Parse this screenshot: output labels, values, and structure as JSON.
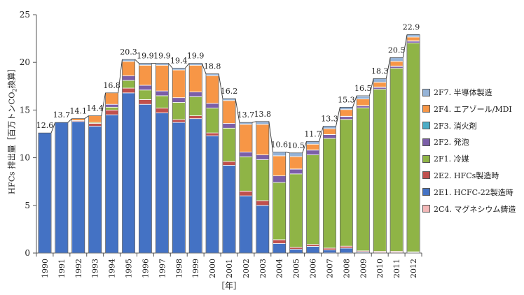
{
  "chart_data": {
    "type": "bar",
    "stacked": true,
    "ylabel": "HFCs 排出量［百万トンCO₂換算］",
    "ylabel_parts": [
      "HFCs 排出量［百万トンCO",
      "2",
      "換算］"
    ],
    "xlabel": "［年］",
    "ylim": [
      0,
      25
    ],
    "yticks": [
      0,
      5,
      10,
      15,
      20,
      25
    ],
    "legend_position": "right",
    "categories": [
      "1990",
      "1991",
      "1992",
      "1993",
      "1994",
      "1995",
      "1996",
      "1997",
      "1998",
      "1999",
      "2000",
      "2001",
      "2002",
      "2003",
      "2004",
      "2005",
      "2006",
      "2007",
      "2008",
      "2009",
      "2010",
      "2011",
      "2012"
    ],
    "totals": [
      12.6,
      13.7,
      14.1,
      14.4,
      16.8,
      20.3,
      19.9,
      19.9,
      19.4,
      19.9,
      18.8,
      16.2,
      13.7,
      13.8,
      10.6,
      10.5,
      11.7,
      13.3,
      15.3,
      16.5,
      18.3,
      20.5,
      22.9
    ],
    "total_labels": [
      "12.6",
      "13.7",
      "14.1",
      "14.4",
      "16.8",
      "20.3",
      "19.9",
      "19.9",
      "19.4",
      "19.9",
      "18.8",
      "16.2",
      "13.7",
      "13.8",
      "10.6",
      "10.5",
      "11.7",
      "13.3",
      "15.3",
      "16.5",
      "18.3",
      "20.5",
      "22.9"
    ],
    "series": [
      {
        "name": "2C4. マグネシウム鋳造",
        "color": "#f4b8b8",
        "values": [
          0,
          0,
          0,
          0,
          0,
          0,
          0,
          0,
          0,
          0,
          0,
          0,
          0,
          0,
          0,
          0,
          0,
          0.02,
          0.02,
          0.03,
          0.03,
          0.03,
          0.03
        ]
      },
      {
        "name": "2E1. HCFC-22製造時",
        "color": "#4472c4",
        "values": [
          12.6,
          13.7,
          13.8,
          13.3,
          14.5,
          16.8,
          15.6,
          14.7,
          13.7,
          14.1,
          12.3,
          9.2,
          6.0,
          5.0,
          1.0,
          0.4,
          0.7,
          0.3,
          0.5,
          0.1,
          0.05,
          0.05,
          0.05
        ]
      },
      {
        "name": "2E2. HFCs製造時",
        "color": "#c0504d",
        "values": [
          0,
          0,
          0.1,
          0.3,
          0.5,
          0.5,
          0.5,
          0.5,
          0.3,
          0.3,
          0.3,
          0.4,
          0.5,
          0.5,
          0.4,
          0.2,
          0.2,
          0.2,
          0.2,
          0.1,
          0.1,
          0.1,
          0.05
        ]
      },
      {
        "name": "2F1. 冷媒",
        "color": "#8fb446",
        "values": [
          0,
          0,
          0,
          0.1,
          0.3,
          0.8,
          1.0,
          1.3,
          1.8,
          2.0,
          2.6,
          3.5,
          3.6,
          4.3,
          6.0,
          7.7,
          9.4,
          11.5,
          13.3,
          15.0,
          17.0,
          19.2,
          21.9
        ]
      },
      {
        "name": "2F2. 発泡",
        "color": "#7b5ea8",
        "values": [
          0,
          0,
          0,
          0,
          0.3,
          0.5,
          0.5,
          0.5,
          0.5,
          0.5,
          0.5,
          0.5,
          0.5,
          0.5,
          0.7,
          0.5,
          0.5,
          0.4,
          0.3,
          0.2,
          0.2,
          0.2,
          0.2
        ]
      },
      {
        "name": "2F3. 消火剤",
        "color": "#4bacc6",
        "values": [
          0,
          0,
          0,
          0,
          0,
          0,
          0,
          0,
          0,
          0,
          0,
          0,
          0,
          0,
          0,
          0.02,
          0.02,
          0.02,
          0.03,
          0.03,
          0.03,
          0.03,
          0.03
        ]
      },
      {
        "name": "2F4. エアゾール/MDI",
        "color": "#f79646",
        "values": [
          0,
          0,
          0.2,
          0.7,
          1.2,
          1.5,
          2.1,
          2.7,
          2.9,
          2.8,
          2.9,
          2.4,
          2.9,
          3.2,
          2.1,
          1.3,
          0.6,
          0.6,
          0.7,
          0.7,
          0.5,
          0.5,
          0.4
        ]
      },
      {
        "name": "2F7. 半導体製造",
        "color": "#95b3d7",
        "values": [
          0,
          0,
          0,
          0,
          0,
          0.2,
          0.2,
          0.2,
          0.2,
          0.2,
          0.2,
          0.2,
          0.2,
          0.3,
          0.4,
          0.4,
          0.3,
          0.3,
          0.3,
          0.3,
          0.4,
          0.4,
          0.3
        ]
      }
    ]
  }
}
